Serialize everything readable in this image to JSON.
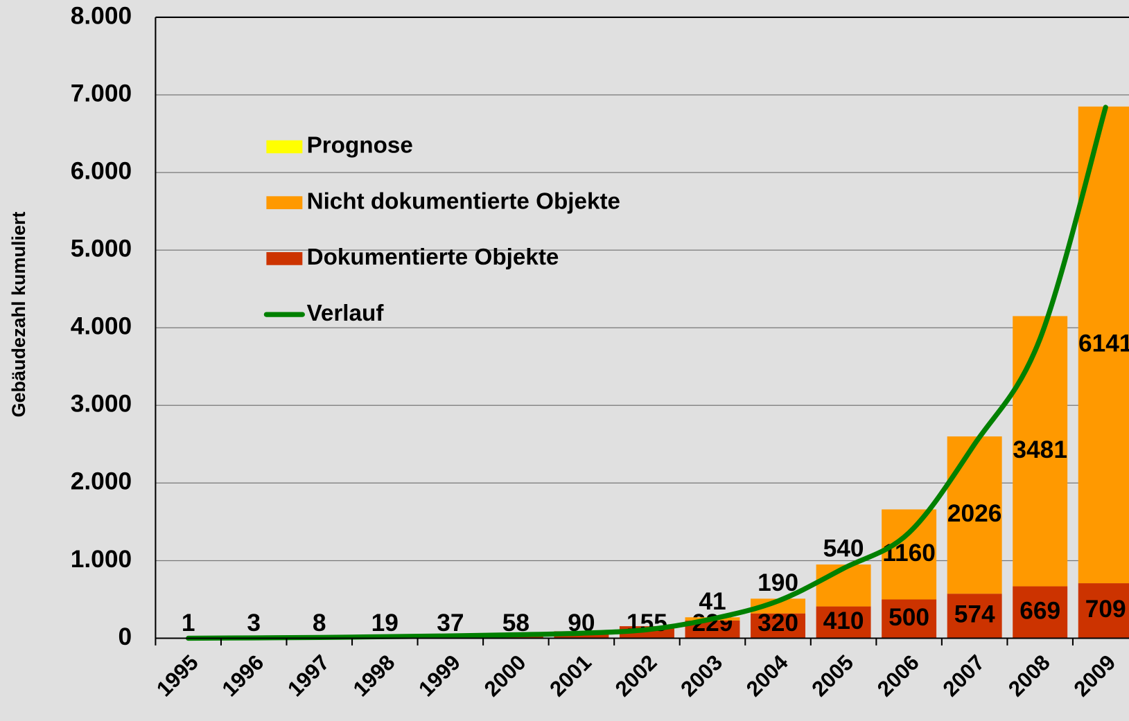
{
  "chart_data": {
    "type": "bar",
    "stacked": true,
    "y_label": "Gebäudezahl kumuliert",
    "categories": [
      "1995",
      "1996",
      "1997",
      "1998",
      "1999",
      "2000",
      "2001",
      "2002",
      "2003",
      "2004",
      "2005",
      "2006",
      "2007",
      "2008",
      "2009"
    ],
    "series": [
      {
        "name": "Prognose",
        "color": "#ffff00",
        "kind": "bar",
        "values": [
          null,
          null,
          null,
          null,
          null,
          null,
          null,
          null,
          null,
          null,
          null,
          null,
          null,
          null,
          null
        ]
      },
      {
        "name": "Nicht dokumentierte Objekte",
        "color": "#ff9900",
        "kind": "bar",
        "values": [
          null,
          null,
          null,
          null,
          null,
          null,
          null,
          null,
          41,
          190,
          540,
          1160,
          2026,
          3481,
          6141
        ]
      },
      {
        "name": "Dokumentierte Objekte",
        "color": "#cc3300",
        "kind": "bar",
        "values": [
          1,
          3,
          8,
          19,
          37,
          58,
          90,
          155,
          229,
          320,
          410,
          500,
          574,
          669,
          709
        ]
      },
      {
        "name": "Verlauf",
        "color": "#008000",
        "kind": "line",
        "values": [
          0,
          5,
          10,
          20,
          30,
          45,
          65,
          110,
          250,
          480,
          900,
          1360,
          2500,
          3860,
          6840
        ]
      }
    ],
    "ylim": [
      0,
      8000
    ],
    "yticks": [
      0,
      {
        "value": 1000,
        "label": "1.000"
      },
      {
        "value": 2000,
        "label": "2.000"
      },
      {
        "value": 3000,
        "label": "3.000"
      },
      {
        "value": 4000,
        "label": "4.000"
      },
      {
        "value": 5000,
        "label": "5.000"
      },
      {
        "value": 6000,
        "label": "6.000"
      },
      {
        "value": 7000,
        "label": "7.000"
      },
      {
        "value": 8000,
        "label": "8.000"
      }
    ],
    "grid": true,
    "legend": "upper left"
  }
}
